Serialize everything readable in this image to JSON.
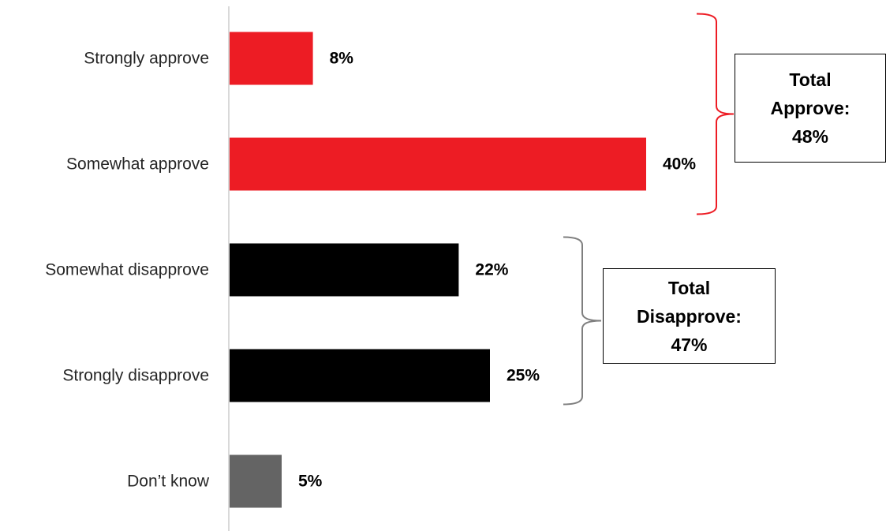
{
  "chart_data": {
    "type": "bar",
    "orientation": "horizontal",
    "categories": [
      "Strongly approve",
      "Somewhat approve",
      "Somewhat disapprove",
      "Strongly disapprove",
      "Don’t know"
    ],
    "values": [
      8,
      40,
      22,
      25,
      5
    ],
    "value_labels": [
      "8%",
      "40%",
      "22%",
      "25%",
      "5%"
    ],
    "bar_colors": [
      "#ed1c24",
      "#ed1c24",
      "#000000",
      "#000000",
      "#646464"
    ],
    "xlim": [
      0,
      40
    ],
    "grid": false,
    "legend": "none",
    "groups": [
      {
        "categories": [
          "Strongly approve",
          "Somewhat approve"
        ],
        "label_line1": "Total",
        "label_line2": "Approve:",
        "label_line3": "48%",
        "bracket_color": "#ed1c24"
      },
      {
        "categories": [
          "Somewhat disapprove",
          "Strongly disapprove"
        ],
        "label_line1": "Total",
        "label_line2": "Disapprove:",
        "label_line3": "47%",
        "bracket_color": "#7f7f7f"
      }
    ]
  }
}
